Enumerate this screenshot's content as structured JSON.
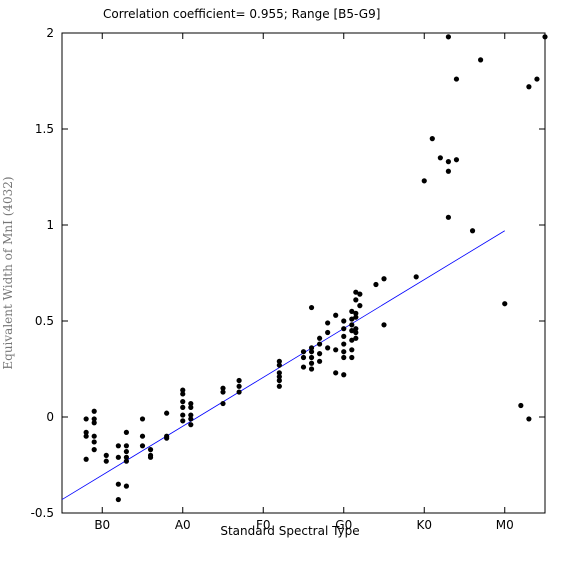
{
  "chart_data": {
    "type": "scatter",
    "title": "Correlation coefficient= 0.955; Range [B5-G9]",
    "x_label": "Standard Spectral Type",
    "y_label": "Equivalent Width of MnI (4032)",
    "color": "#000000",
    "x": [
      -2,
      -2,
      -2,
      -2,
      -1,
      -1,
      -1,
      -1,
      -1,
      -1,
      0.5,
      0.5,
      2,
      2,
      2,
      2,
      3,
      3,
      3,
      3,
      3,
      3,
      5,
      5,
      5,
      6,
      6,
      6,
      8,
      8,
      8,
      10,
      10,
      10,
      10,
      10,
      10,
      11,
      11,
      11,
      11,
      11,
      15,
      15,
      15,
      17,
      17,
      17,
      22,
      22,
      22,
      22,
      22,
      22,
      25,
      25,
      25,
      26,
      26,
      26,
      26,
      26,
      26,
      27,
      27,
      27,
      27,
      28,
      28,
      28,
      29,
      29,
      29,
      30,
      30,
      30,
      30,
      30,
      30,
      30,
      31,
      31,
      31,
      31,
      31,
      31,
      31,
      31.5,
      31.5,
      31.5,
      31.5,
      31.5,
      31.5,
      31.5,
      32,
      32,
      34,
      35,
      35,
      39,
      40,
      41,
      42,
      43,
      43,
      43,
      43,
      44,
      44,
      46,
      47,
      50,
      52,
      53,
      53,
      54,
      55
    ],
    "values": [
      -0.01,
      -0.08,
      -0.1,
      -0.22,
      0.03,
      -0.01,
      -0.03,
      -0.1,
      -0.13,
      -0.17,
      -0.2,
      -0.23,
      -0.15,
      -0.21,
      -0.35,
      -0.43,
      -0.08,
      -0.15,
      -0.18,
      -0.21,
      -0.23,
      -0.36,
      -0.01,
      -0.1,
      -0.15,
      -0.17,
      -0.2,
      -0.21,
      0.02,
      -0.1,
      -0.11,
      0.14,
      0.12,
      0.08,
      0.05,
      0.01,
      -0.02,
      0.07,
      0.05,
      0.01,
      -0.01,
      -0.04,
      0.15,
      0.13,
      0.07,
      0.19,
      0.16,
      0.13,
      0.29,
      0.27,
      0.23,
      0.21,
      0.19,
      0.16,
      0.34,
      0.31,
      0.26,
      0.57,
      0.36,
      0.34,
      0.31,
      0.28,
      0.25,
      0.41,
      0.38,
      0.33,
      0.29,
      0.49,
      0.44,
      0.36,
      0.53,
      0.35,
      0.23,
      0.5,
      0.46,
      0.42,
      0.38,
      0.34,
      0.31,
      0.22,
      0.55,
      0.51,
      0.48,
      0.45,
      0.4,
      0.35,
      0.31,
      0.65,
      0.61,
      0.54,
      0.52,
      0.46,
      0.44,
      0.41,
      0.64,
      0.58,
      0.69,
      0.72,
      0.48,
      0.73,
      1.23,
      1.45,
      1.35,
      1.98,
      1.33,
      1.28,
      1.04,
      1.76,
      1.34,
      0.97,
      1.86,
      0.59,
      0.06,
      1.72,
      -0.01,
      1.76,
      1.98
    ],
    "fit": {
      "x": [
        -5,
        50
      ],
      "values": [
        -0.43,
        0.97
      ],
      "color": "#0000ff"
    },
    "xlim": [
      -5,
      55
    ],
    "ylim": [
      -0.5,
      2
    ],
    "xticks": [
      {
        "value": 0,
        "label": "B0"
      },
      {
        "value": 10,
        "label": "A0"
      },
      {
        "value": 20,
        "label": "F0"
      },
      {
        "value": 30,
        "label": "G0"
      },
      {
        "value": 40,
        "label": "K0"
      },
      {
        "value": 50,
        "label": "M0"
      }
    ],
    "yticks": [
      -0.5,
      0,
      0.5,
      1,
      1.5,
      2
    ]
  }
}
